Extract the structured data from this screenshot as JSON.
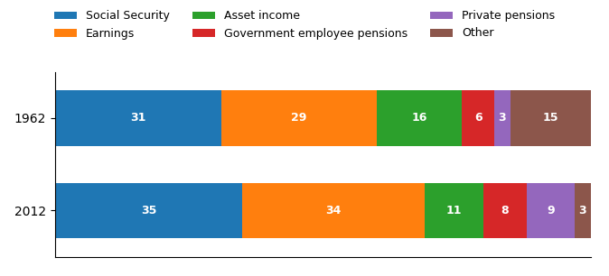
{
  "chart_data": {
    "type": "bar",
    "orientation": "horizontal",
    "stacked": true,
    "categories": [
      "1962",
      "2012"
    ],
    "series": [
      {
        "name": "Social Security",
        "values": [
          31,
          35
        ]
      },
      {
        "name": "Earnings",
        "values": [
          29,
          34
        ]
      },
      {
        "name": "Asset income",
        "values": [
          16,
          11
        ]
      },
      {
        "name": "Government employee pensions",
        "values": [
          6,
          8
        ]
      },
      {
        "name": "Private pensions",
        "values": [
          3,
          9
        ]
      },
      {
        "name": "Other",
        "values": [
          15,
          3
        ]
      }
    ],
    "xlim": [
      0,
      100
    ],
    "data_labels": true,
    "tick_labels": "y",
    "legend": "upper center",
    "grid": false
  }
}
